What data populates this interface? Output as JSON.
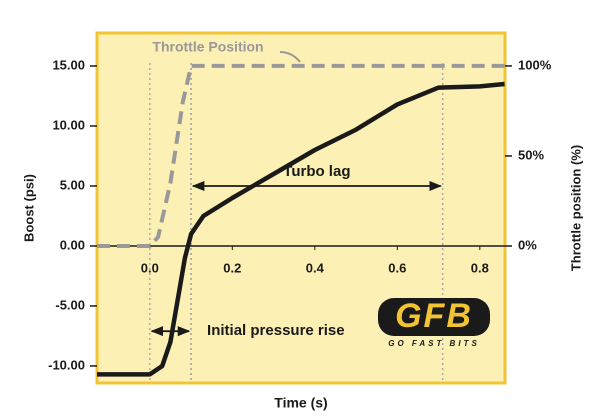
{
  "chart_data": {
    "type": "line",
    "x_label": "Time (s)",
    "y_label": "Boost (psi)",
    "y2_label": "Throttle position (%)",
    "xlim": [
      -0.128,
      0.861
    ],
    "ylim": [
      -11.42,
      17.75
    ],
    "y2lim": [
      -76.1,
      118.3
    ],
    "xticks": [
      {
        "value": 0,
        "label": "0.0"
      },
      0.2,
      0.4,
      0.6,
      0.8
    ],
    "yticks": [
      {
        "value": 15,
        "label": "15.00"
      },
      {
        "value": 10,
        "label": "10.00"
      },
      {
        "value": 5,
        "label": "5.00"
      },
      {
        "value": 0,
        "label": "0.00"
      },
      {
        "value": -5,
        "label": "-5.00"
      },
      {
        "value": -10,
        "label": "-10.00"
      }
    ],
    "y2ticks": [
      {
        "value": 100,
        "label": "100%"
      },
      {
        "value": 50,
        "label": "50%"
      },
      {
        "value": 0,
        "label": "0%"
      }
    ],
    "series": [
      {
        "name": "Throttle Position",
        "color": "#999999",
        "axis": "y2",
        "dashed": true,
        "x": [
          -0.128,
          0.0,
          0.02,
          0.05,
          0.08,
          0.1,
          0.861
        ],
        "values": [
          0,
          0,
          5,
          35,
          80,
          100,
          100
        ]
      },
      {
        "color": "#1a1a1a",
        "x": [
          -0.128,
          0.0,
          0.03,
          0.05,
          0.07,
          0.085,
          0.1,
          0.13,
          0.2,
          0.3,
          0.4,
          0.5,
          0.6,
          0.7,
          0.8,
          0.86
        ],
        "values": [
          -10.7,
          -10.7,
          -10,
          -8,
          -4,
          -1,
          1,
          2.5,
          4,
          6,
          8,
          9.7,
          11.8,
          13.2,
          13.3,
          13.5
        ]
      }
    ],
    "annotations": [
      {
        "text": "Turbo lag",
        "x": [
          0.1,
          0.71
        ],
        "y": 5
      },
      {
        "text": "Initial pressure rise",
        "x": [
          0.0,
          0.1
        ],
        "y": -7.1
      }
    ],
    "logo": {
      "title": "GFB",
      "subtitle": "GO FAST BITS"
    }
  }
}
